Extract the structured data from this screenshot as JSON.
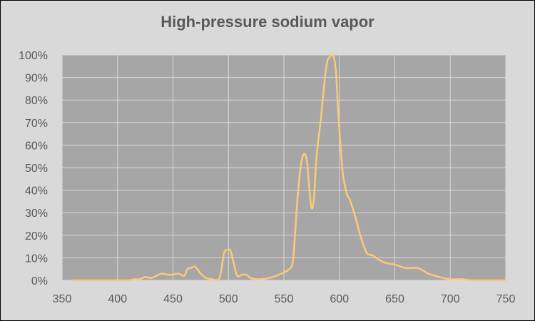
{
  "chart_data": {
    "type": "line",
    "title": "High-pressure sodium vapor",
    "xlabel": "",
    "ylabel": "",
    "xlim": [
      350,
      750
    ],
    "ylim": [
      0,
      100
    ],
    "x_ticks": [
      "350",
      "400",
      "450",
      "500",
      "550",
      "600",
      "650",
      "700",
      "750"
    ],
    "y_ticks": [
      "0%",
      "10%",
      "20%",
      "30%",
      "40%",
      "50%",
      "60%",
      "70%",
      "80%",
      "90%",
      "100%"
    ],
    "grid": true,
    "legend": "none",
    "colors": {
      "line": "#fcc978",
      "plot_bg": "#a6a6a6",
      "grid": "#d9d9d9",
      "page_bg": "#d9d9d9",
      "text": "#595959"
    },
    "series": [
      {
        "x": [
          360,
          380,
          400,
          410,
          415,
          420,
          425,
          430,
          435,
          440,
          445,
          450,
          455,
          460,
          463,
          466,
          470,
          475,
          480,
          485,
          490,
          493,
          496,
          499,
          502,
          505,
          508,
          512,
          516,
          520,
          525,
          530,
          540,
          550,
          555,
          558,
          560,
          562,
          565,
          567,
          569,
          571,
          573,
          575,
          577,
          579,
          581,
          583,
          585,
          587,
          589,
          591,
          593,
          595,
          597,
          599,
          601,
          603,
          605,
          607,
          610,
          615,
          620,
          625,
          630,
          640,
          650,
          660,
          670,
          675,
          680,
          690,
          700,
          710,
          720,
          730,
          740,
          750
        ],
        "y": [
          0,
          0,
          0,
          0,
          0.5,
          0.5,
          1.5,
          1,
          2,
          3,
          2.5,
          2.5,
          3,
          2,
          5,
          5.5,
          6,
          3,
          1,
          0.5,
          0,
          3,
          12,
          13.5,
          13,
          7,
          2,
          2.5,
          2.5,
          1,
          0.5,
          0.5,
          1.5,
          3.5,
          5,
          8,
          20,
          35,
          50,
          55,
          56,
          52,
          40,
          32,
          36,
          52,
          62,
          70,
          80,
          90,
          97,
          99,
          100,
          99,
          92,
          74,
          60,
          48,
          42,
          38,
          35,
          27,
          18,
          12,
          11,
          8,
          7,
          5.5,
          5.5,
          4.5,
          3,
          1.5,
          0.5,
          0.5,
          0,
          0,
          0,
          0
        ]
      }
    ]
  }
}
